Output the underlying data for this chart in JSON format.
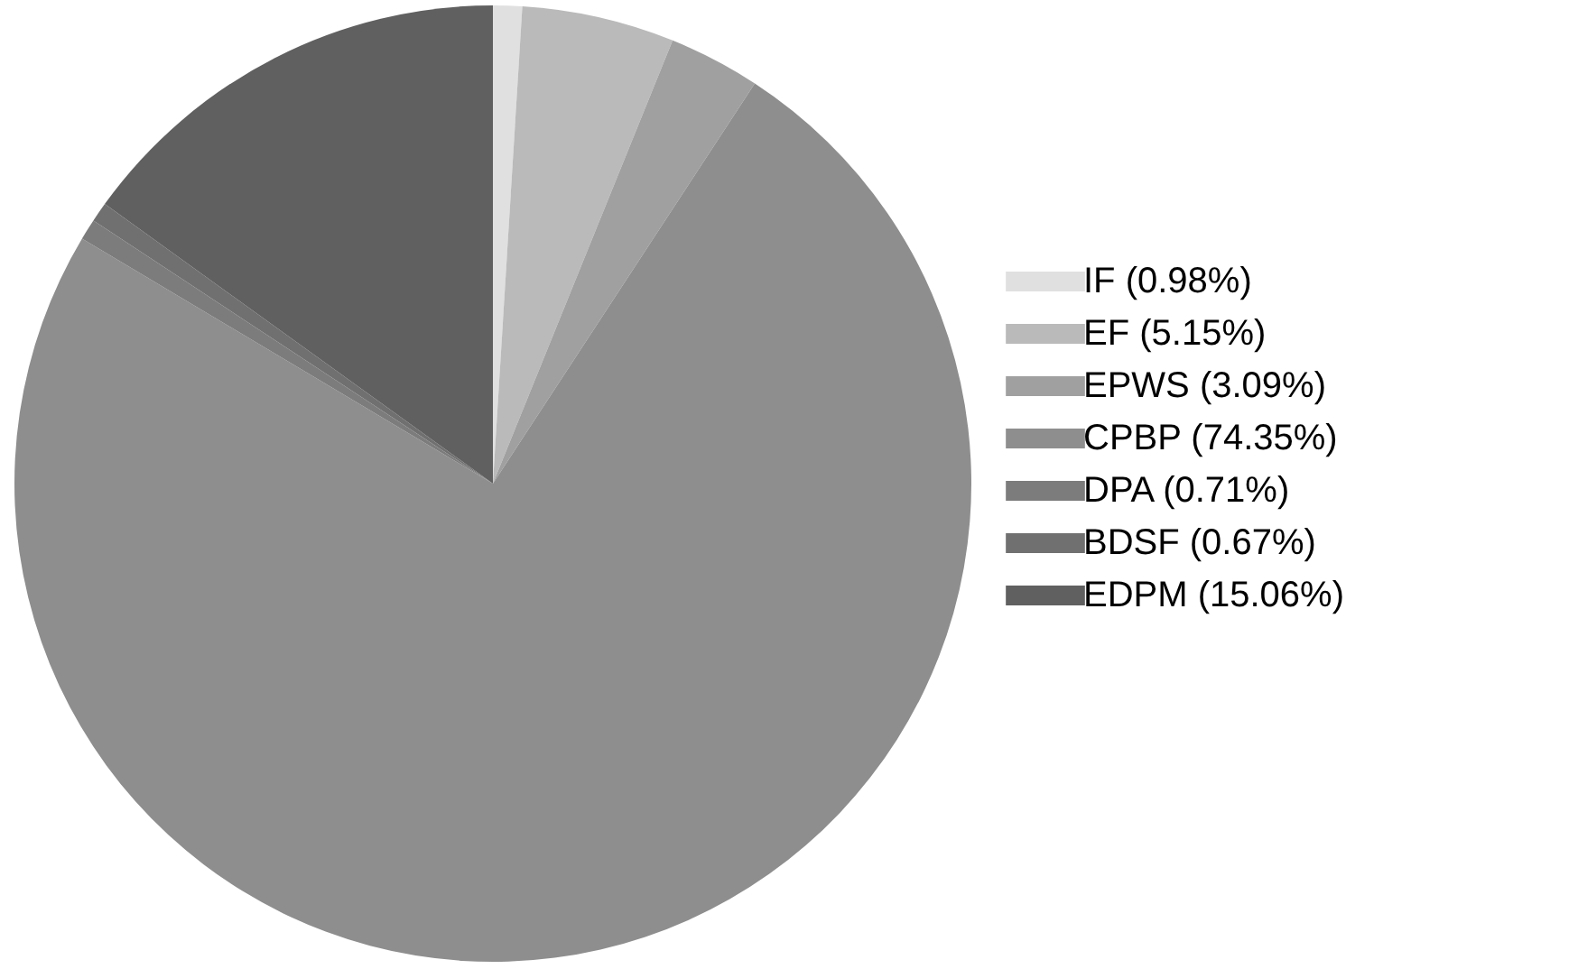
{
  "chart_data": {
    "type": "pie",
    "categories": [
      "IF (0.98%)",
      "EF (5.15%)",
      "EPWS (3.09%)",
      "CPBP (74.35%)",
      "DPA (0.71%)",
      "BDSF (0.67%)",
      "EDPM (15.06%)"
    ],
    "values": [
      0.98,
      5.15,
      3.09,
      74.35,
      0.71,
      0.67,
      15.06
    ],
    "colors": [
      "#e0e0e0",
      "#bababa",
      "#a0a0a0",
      "#8e8e8e",
      "#7c7c7c",
      "#707070",
      "#606060"
    ],
    "legend": "right"
  }
}
